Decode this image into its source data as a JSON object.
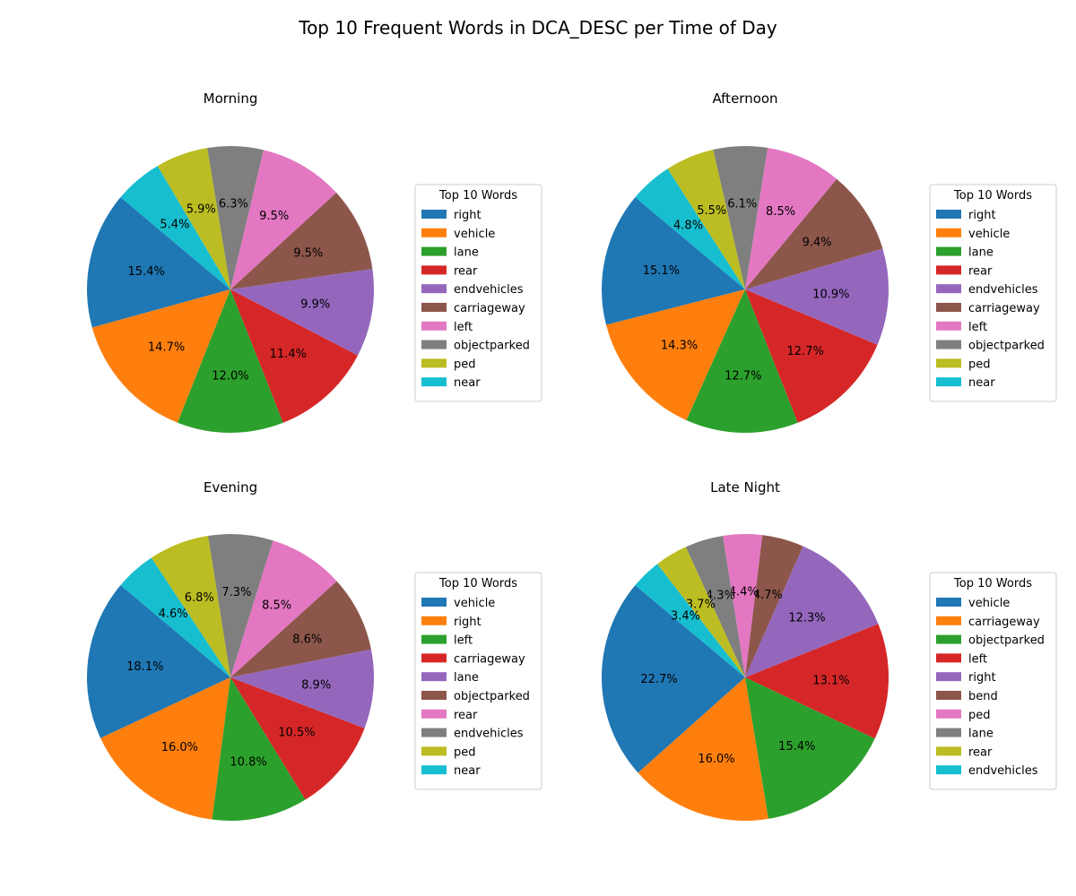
{
  "figure_title": "Top 10 Frequent Words in DCA_DESC per Time of Day",
  "legend_title": "Top 10 Words",
  "colors": [
    "#1f77b4",
    "#ff7f0e",
    "#2ca02c",
    "#d62728",
    "#9467bd",
    "#8c564b",
    "#e377c2",
    "#7f7f7f",
    "#bcbd22",
    "#17becf"
  ],
  "chart_data": [
    {
      "type": "pie",
      "title": "Morning",
      "labels": [
        "right",
        "vehicle",
        "lane",
        "rear",
        "endvehicles",
        "carriageway",
        "left",
        "objectparked",
        "ped",
        "near"
      ],
      "values": [
        15.4,
        14.7,
        12.0,
        11.4,
        9.9,
        9.5,
        9.5,
        6.3,
        5.9,
        5.4
      ],
      "value_labels": [
        "15.4%",
        "14.7%",
        "12.0%",
        "11.4%",
        "9.9%",
        "9.5%",
        "9.5%",
        "6.3%",
        "5.9%",
        "5.4%"
      ],
      "start_angle_deg": 140,
      "direction": "counterclockwise",
      "legend_placement": "right"
    },
    {
      "type": "pie",
      "title": "Afternoon",
      "labels": [
        "right",
        "vehicle",
        "lane",
        "rear",
        "endvehicles",
        "carriageway",
        "left",
        "objectparked",
        "ped",
        "near"
      ],
      "values": [
        15.1,
        14.3,
        12.7,
        12.7,
        10.9,
        9.4,
        8.5,
        6.1,
        5.5,
        4.8
      ],
      "value_labels": [
        "15.1%",
        "14.3%",
        "12.7%",
        "12.7%",
        "10.9%",
        "9.4%",
        "8.5%",
        "6.1%",
        "5.5%",
        "4.8%"
      ],
      "start_angle_deg": 140,
      "direction": "counterclockwise",
      "legend_placement": "right"
    },
    {
      "type": "pie",
      "title": "Evening",
      "labels": [
        "vehicle",
        "right",
        "left",
        "carriageway",
        "lane",
        "objectparked",
        "rear",
        "endvehicles",
        "ped",
        "near"
      ],
      "values": [
        18.1,
        16.0,
        10.8,
        10.5,
        8.9,
        8.6,
        8.5,
        7.3,
        6.8,
        4.6
      ],
      "value_labels": [
        "18.1%",
        "16.0%",
        "10.8%",
        "10.5%",
        "8.9%",
        "8.6%",
        "8.5%",
        "7.3%",
        "6.8%",
        "4.6%"
      ],
      "start_angle_deg": 140,
      "direction": "counterclockwise",
      "legend_placement": "right"
    },
    {
      "type": "pie",
      "title": "Late Night",
      "labels": [
        "vehicle",
        "carriageway",
        "objectparked",
        "left",
        "right",
        "bend",
        "ped",
        "lane",
        "rear",
        "endvehicles"
      ],
      "values": [
        22.7,
        16.0,
        15.4,
        13.1,
        12.3,
        4.7,
        4.4,
        4.3,
        3.7,
        3.4
      ],
      "value_labels": [
        "22.7%",
        "16.0%",
        "15.4%",
        "13.1%",
        "12.3%",
        "4.7%",
        "4.4%",
        "4.3%",
        "3.7%",
        "3.4%"
      ],
      "start_angle_deg": 140,
      "direction": "counterclockwise",
      "legend_placement": "right"
    }
  ]
}
